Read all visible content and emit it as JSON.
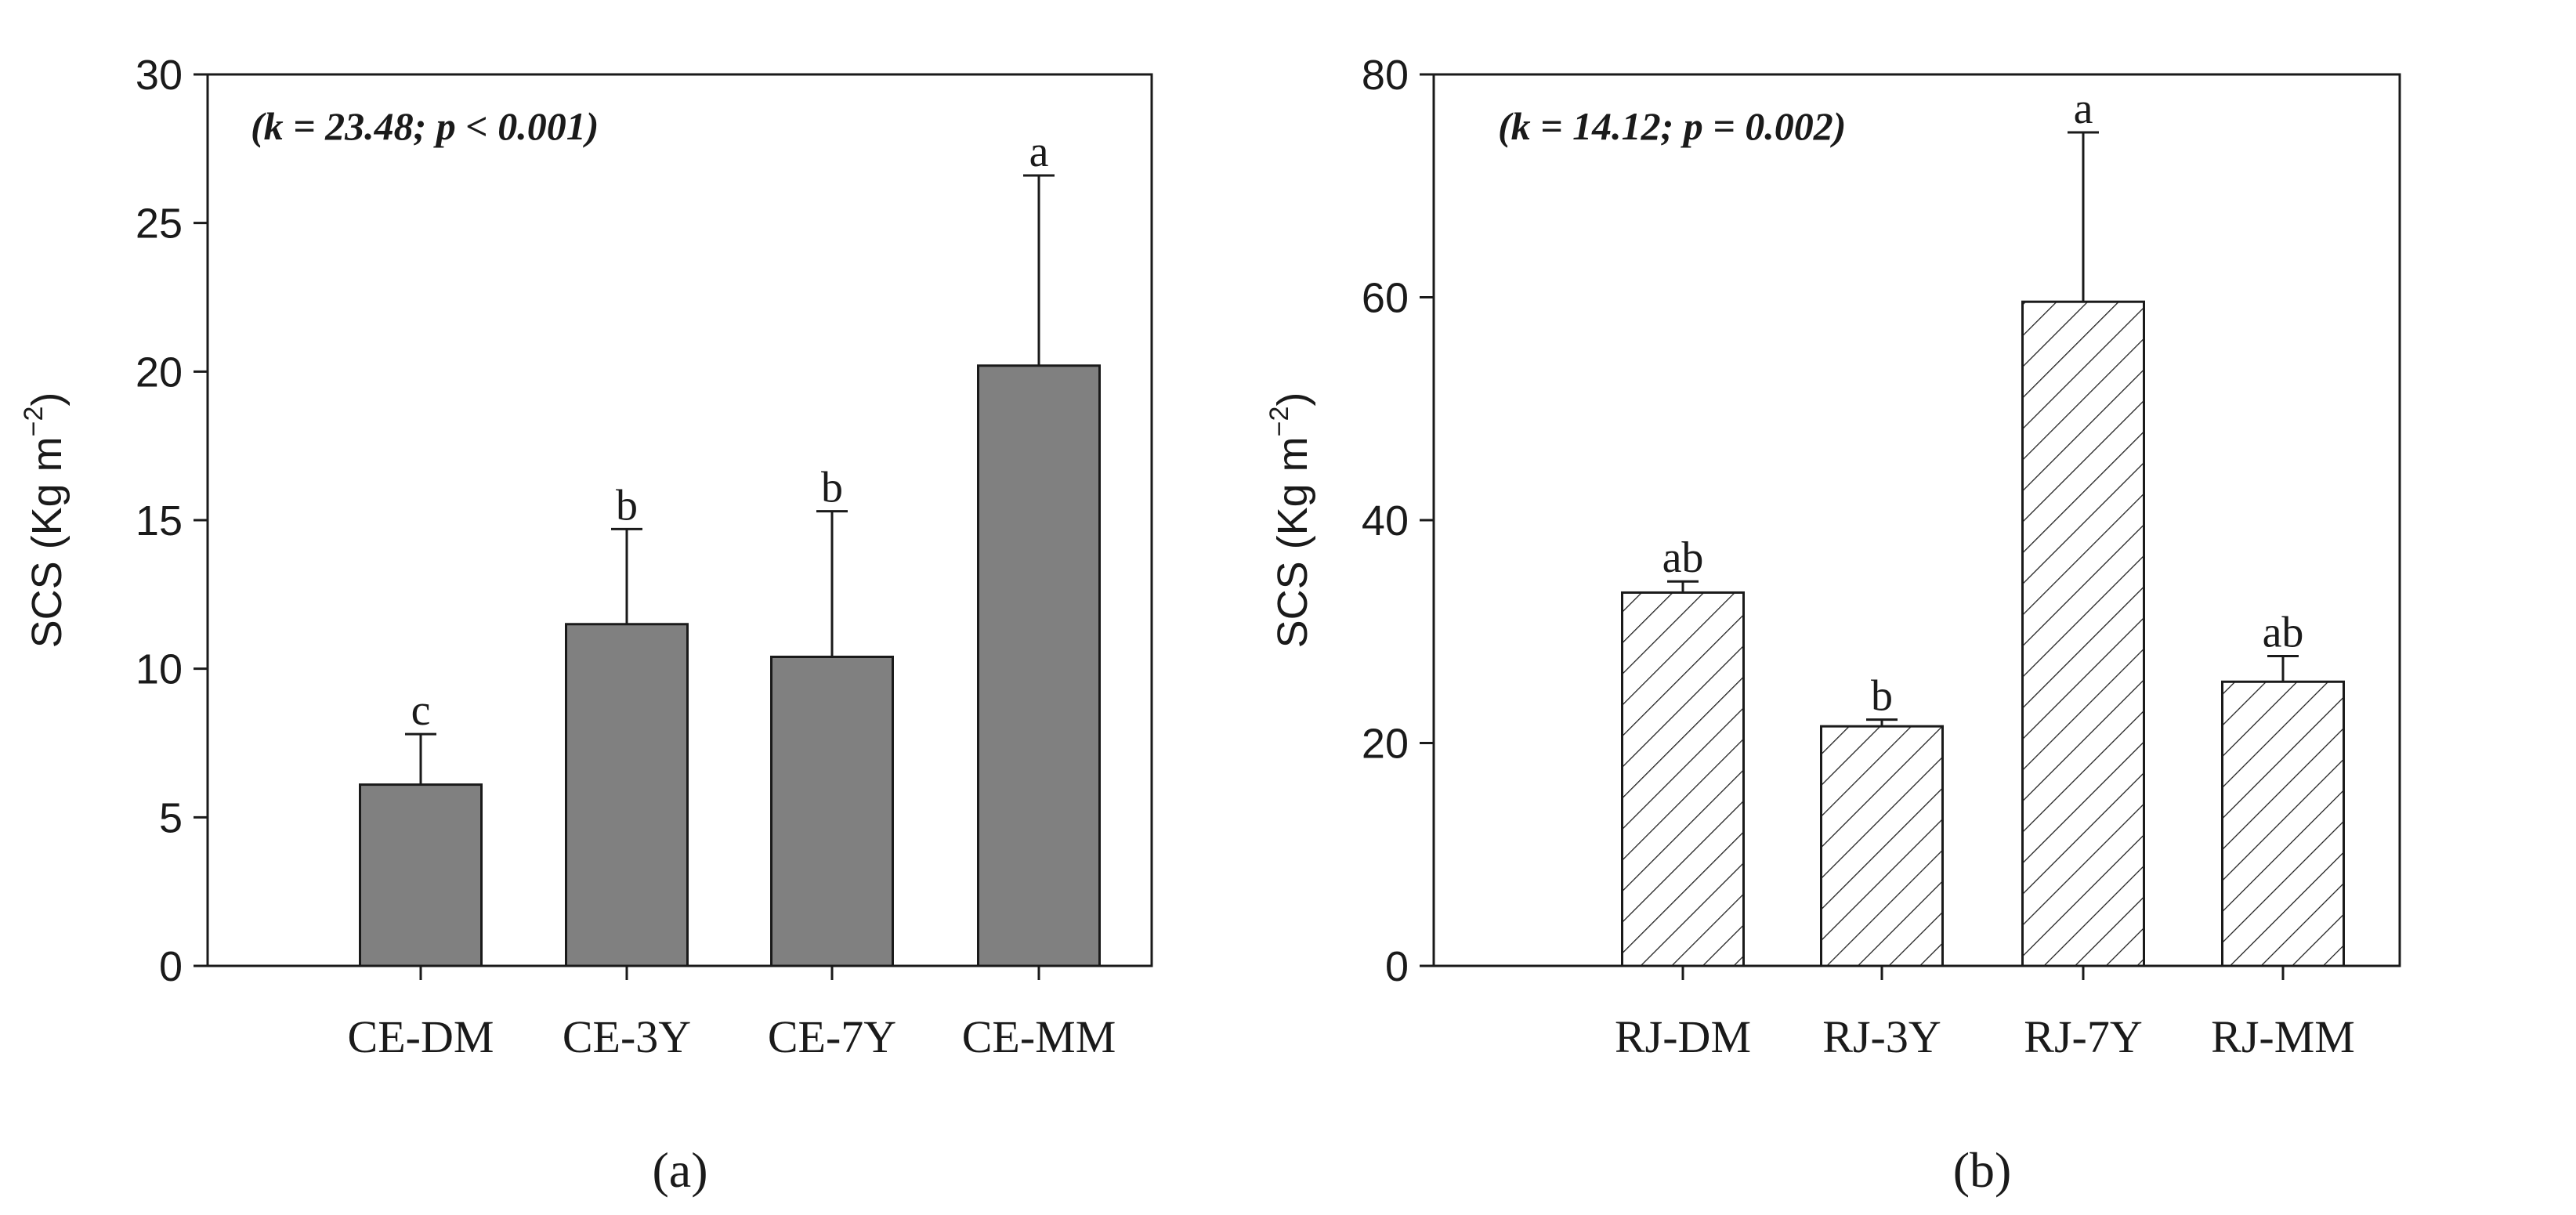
{
  "chart_data": [
    {
      "type": "bar",
      "panel_label": "(a)",
      "annotation": "(k = 23.48; p < 0.001)",
      "ylabel": "SCS (Kg m",
      "ylabel_sup": "−2",
      "ylabel_close": ")",
      "xlabel": "",
      "ylim": [
        0,
        30
      ],
      "yticks": [
        0,
        5,
        10,
        15,
        20,
        25,
        30
      ],
      "categories": [
        "CE-DM",
        "CE-3Y",
        "CE-7Y",
        "CE-MM"
      ],
      "values": [
        6.1,
        11.5,
        10.4,
        20.2
      ],
      "errors": [
        1.7,
        3.2,
        4.9,
        6.4
      ],
      "letters": [
        "c",
        "b",
        "b",
        "a"
      ],
      "fill": "solid",
      "bar_color": "#808080"
    },
    {
      "type": "bar",
      "panel_label": "(b)",
      "annotation": "(k = 14.12; p = 0.002)",
      "ylabel": "SCS (Kg m",
      "ylabel_sup": "−2",
      "ylabel_close": ")",
      "xlabel": "",
      "ylim": [
        0,
        80
      ],
      "yticks": [
        0,
        20,
        40,
        60,
        80
      ],
      "categories": [
        "RJ-DM",
        "RJ-3Y",
        "RJ-7Y",
        "RJ-MM"
      ],
      "values": [
        33.5,
        21.5,
        59.6,
        25.5
      ],
      "errors": [
        1.0,
        0.6,
        15.2,
        2.3
      ],
      "letters": [
        "ab",
        "b",
        "a",
        "ab"
      ],
      "fill": "hatched",
      "bar_color": "#ffffff"
    }
  ]
}
